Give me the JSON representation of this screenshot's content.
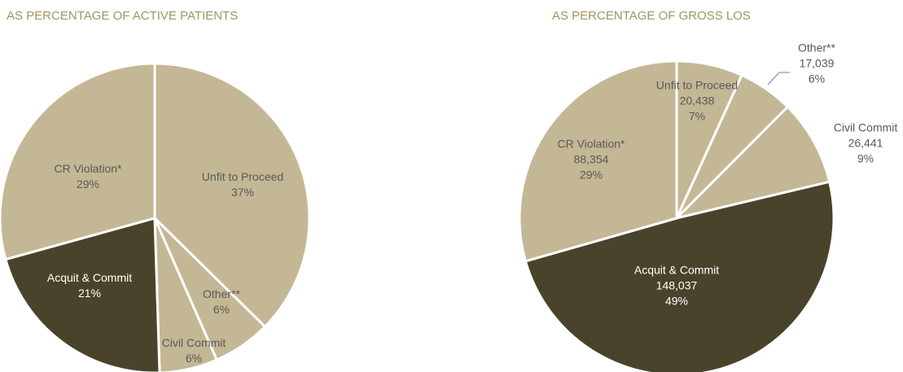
{
  "chart_data": [
    {
      "type": "pie",
      "title": "AS PERCENTAGE OF ACTIVE PATIENTS",
      "categories": [
        "Unfit to Proceed",
        "Other**",
        "Civil Commit",
        "Acquit & Commit",
        "CR Violation*"
      ],
      "values": [
        37,
        6,
        6,
        21,
        29
      ],
      "value_labels": [
        "37%",
        "6%",
        "6%",
        "21%",
        "29%"
      ],
      "colors": [
        "#c4b795",
        "#c4b795",
        "#c4b795",
        "#4a432b",
        "#c4b795"
      ]
    },
    {
      "type": "pie",
      "title": "AS PERCENTAGE OF GROSS LOS",
      "categories": [
        "Unfit to Proceed",
        "Other**",
        "Civil Commit",
        "Acquit & Commit",
        "CR Violation*"
      ],
      "values": [
        20438,
        17039,
        26441,
        148037,
        88354
      ],
      "value_labels": [
        "20,438",
        "17,039",
        "26,441",
        "148,037",
        "88,354"
      ],
      "shares": [
        7,
        6,
        9,
        49,
        29
      ],
      "share_labels": [
        "7%",
        "6%",
        "9%",
        "49%",
        "29%"
      ],
      "colors": [
        "#c4b795",
        "#c4b795",
        "#c4b795",
        "#4a432b",
        "#c4b795"
      ]
    }
  ]
}
